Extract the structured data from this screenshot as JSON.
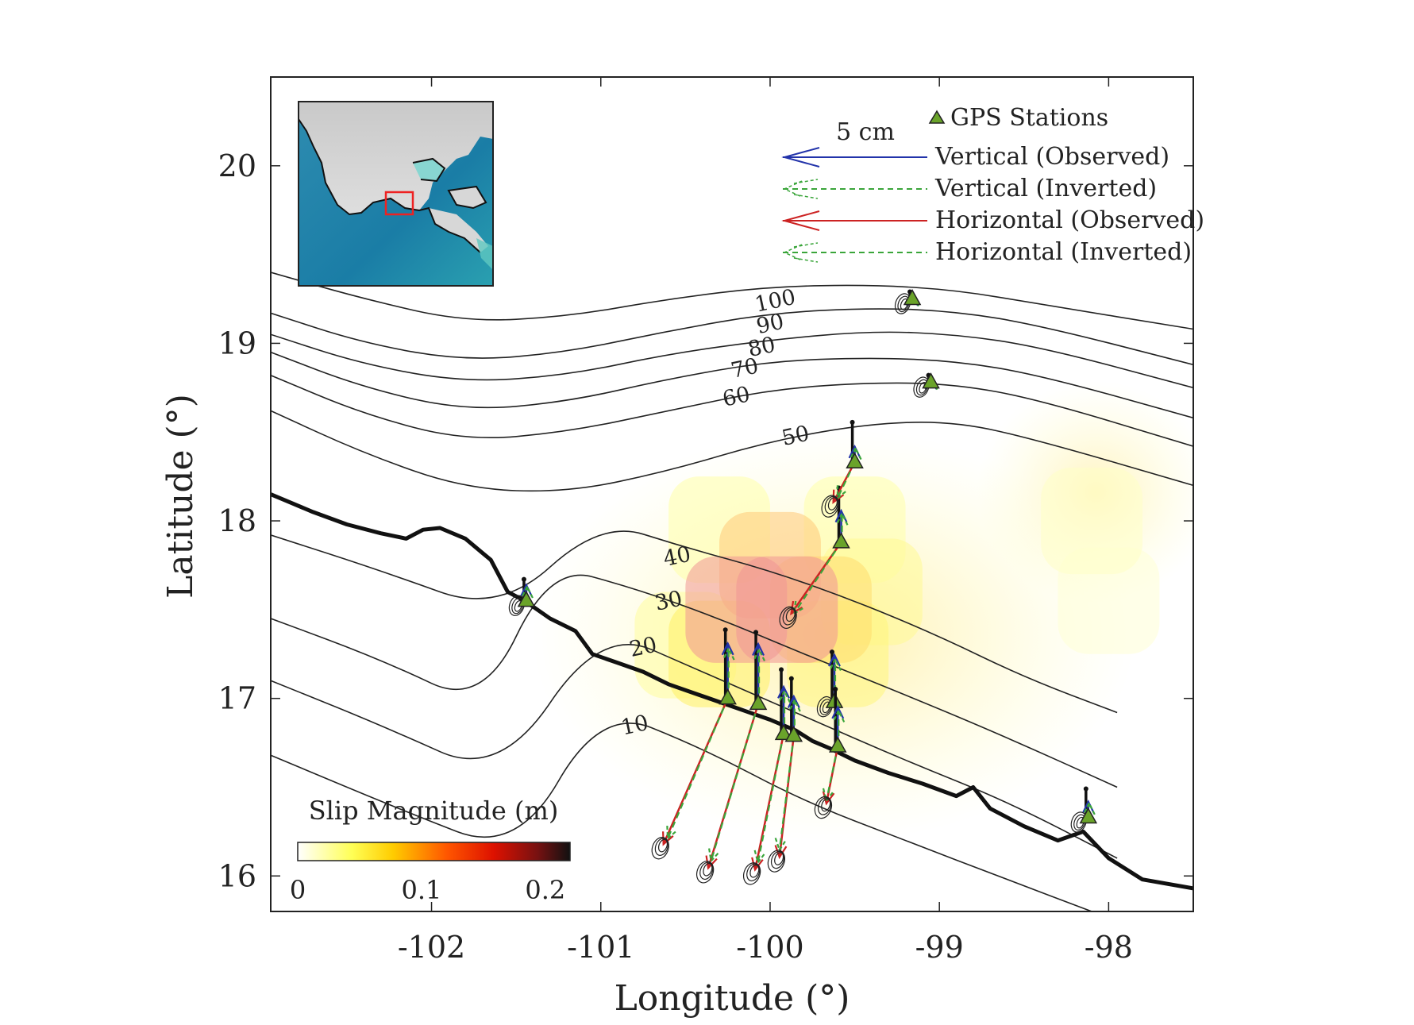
{
  "figure": {
    "xlabel": "Longitude (°)",
    "ylabel": "Latitude (°)",
    "xlim": [
      -102.95,
      -97.5
    ],
    "ylim": [
      15.8,
      20.5
    ]
  },
  "chart_data": {
    "type": "map",
    "x_ticks": [
      {
        "value": -102,
        "label": "-102"
      },
      {
        "value": -101,
        "label": "-101"
      },
      {
        "value": -100,
        "label": "-100"
      },
      {
        "value": -99,
        "label": "-99"
      },
      {
        "value": -98,
        "label": "-98"
      }
    ],
    "y_ticks": [
      {
        "value": 16,
        "label": "16"
      },
      {
        "value": 17,
        "label": "17"
      },
      {
        "value": 18,
        "label": "18"
      },
      {
        "value": 19,
        "label": "19"
      },
      {
        "value": 20,
        "label": "20"
      }
    ],
    "slab_contours": [
      {
        "depth": 10,
        "label": "10",
        "label_at": [
          -100.8,
          16.85
        ],
        "points": [
          [
            -102.95,
            16.68
          ],
          [
            -102.2,
            16.38
          ],
          [
            -101.5,
            16.12
          ],
          [
            -101,
            16.95
          ],
          [
            -100.4,
            16.72
          ],
          [
            -99.8,
            16.42
          ],
          [
            -99.2,
            16.2
          ],
          [
            -98.6,
            15.98
          ],
          [
            -98.1,
            15.8
          ]
        ]
      },
      {
        "depth": 20,
        "label": "20",
        "label_at": [
          -100.75,
          17.29
        ],
        "points": [
          [
            -102.95,
            17.1
          ],
          [
            -102.3,
            16.85
          ],
          [
            -101.6,
            16.55
          ],
          [
            -101.0,
            17.4
          ],
          [
            -100.4,
            17.15
          ],
          [
            -99.8,
            16.9
          ],
          [
            -99.2,
            16.65
          ],
          [
            -98.6,
            16.42
          ],
          [
            -97.95,
            16.1
          ]
        ]
      },
      {
        "depth": 30,
        "label": "30",
        "label_at": [
          -100.6,
          17.55
        ],
        "points": [
          [
            -102.95,
            17.45
          ],
          [
            -102.3,
            17.22
          ],
          [
            -101.7,
            16.95
          ],
          [
            -101.3,
            17.75
          ],
          [
            -100.8,
            17.62
          ],
          [
            -100.3,
            17.45
          ],
          [
            -99.8,
            17.25
          ],
          [
            -99.2,
            17.02
          ],
          [
            -98.6,
            16.78
          ],
          [
            -97.95,
            16.5
          ]
        ]
      },
      {
        "depth": 40,
        "label": "40",
        "label_at": [
          -100.55,
          17.8
        ],
        "points": [
          [
            -102.95,
            17.92
          ],
          [
            -102.3,
            17.72
          ],
          [
            -101.6,
            17.48
          ],
          [
            -101.0,
            18.0
          ],
          [
            -100.5,
            17.85
          ],
          [
            -100.0,
            17.72
          ],
          [
            -99.5,
            17.55
          ],
          [
            -99.0,
            17.35
          ],
          [
            -98.5,
            17.12
          ],
          [
            -97.95,
            16.92
          ]
        ]
      },
      {
        "depth": 50,
        "label": "50",
        "label_at": [
          -99.85,
          18.48
        ],
        "points": [
          [
            -102.95,
            18.62
          ],
          [
            -102.4,
            18.38
          ],
          [
            -101.8,
            18.18
          ],
          [
            -101.2,
            18.16
          ],
          [
            -100.6,
            18.28
          ],
          [
            -100.0,
            18.45
          ],
          [
            -99.4,
            18.55
          ],
          [
            -98.9,
            18.56
          ],
          [
            -98.4,
            18.45
          ],
          [
            -97.5,
            18.2
          ]
        ]
      },
      {
        "depth": 60,
        "label": "60",
        "label_at": [
          -100.2,
          18.7
        ],
        "points": [
          [
            -102.95,
            18.82
          ],
          [
            -102.4,
            18.6
          ],
          [
            -101.8,
            18.45
          ],
          [
            -101.2,
            18.5
          ],
          [
            -100.6,
            18.62
          ],
          [
            -100.0,
            18.74
          ],
          [
            -99.4,
            18.78
          ],
          [
            -98.9,
            18.77
          ],
          [
            -98.4,
            18.68
          ],
          [
            -97.5,
            18.42
          ]
        ]
      },
      {
        "depth": 70,
        "label": "70",
        "label_at": [
          -100.15,
          18.86
        ],
        "points": [
          [
            -102.95,
            18.95
          ],
          [
            -102.4,
            18.75
          ],
          [
            -101.8,
            18.62
          ],
          [
            -101.2,
            18.67
          ],
          [
            -100.6,
            18.8
          ],
          [
            -100.0,
            18.9
          ],
          [
            -99.4,
            18.92
          ],
          [
            -98.9,
            18.9
          ],
          [
            -98.4,
            18.82
          ],
          [
            -97.5,
            18.58
          ]
        ]
      },
      {
        "depth": 80,
        "label": "80",
        "label_at": [
          -100.05,
          18.98
        ],
        "points": [
          [
            -102.95,
            19.05
          ],
          [
            -102.4,
            18.88
          ],
          [
            -101.8,
            18.78
          ],
          [
            -101.2,
            18.82
          ],
          [
            -100.6,
            18.94
          ],
          [
            -100.0,
            19.02
          ],
          [
            -99.4,
            19.07
          ],
          [
            -98.9,
            19.05
          ],
          [
            -98.4,
            18.98
          ],
          [
            -97.5,
            18.75
          ]
        ]
      },
      {
        "depth": 90,
        "label": "90",
        "label_at": [
          -100.0,
          19.11
        ],
        "points": [
          [
            -102.95,
            19.17
          ],
          [
            -102.4,
            19.0
          ],
          [
            -101.8,
            18.9
          ],
          [
            -101.2,
            18.95
          ],
          [
            -100.6,
            19.07
          ],
          [
            -100.0,
            19.17
          ],
          [
            -99.4,
            19.2
          ],
          [
            -98.9,
            19.18
          ],
          [
            -98.4,
            19.1
          ],
          [
            -97.5,
            18.88
          ]
        ]
      },
      {
        "depth": 100,
        "label": "100",
        "label_at": [
          -99.97,
          19.24
        ],
        "points": [
          [
            -102.95,
            19.4
          ],
          [
            -102.4,
            19.25
          ],
          [
            -101.8,
            19.12
          ],
          [
            -101.2,
            19.15
          ],
          [
            -100.6,
            19.25
          ],
          [
            -100.0,
            19.32
          ],
          [
            -99.4,
            19.33
          ],
          [
            -98.9,
            19.3
          ],
          [
            -98.4,
            19.22
          ],
          [
            -97.5,
            19.08
          ]
        ]
      }
    ],
    "coastline": [
      [
        -102.95,
        18.15
      ],
      [
        -102.7,
        18.05
      ],
      [
        -102.5,
        17.98
      ],
      [
        -102.3,
        17.93
      ],
      [
        -102.15,
        17.9
      ],
      [
        -102.05,
        17.95
      ],
      [
        -101.95,
        17.96
      ],
      [
        -101.8,
        17.9
      ],
      [
        -101.7,
        17.82
      ],
      [
        -101.65,
        17.78
      ],
      [
        -101.55,
        17.6
      ],
      [
        -101.45,
        17.55
      ],
      [
        -101.3,
        17.45
      ],
      [
        -101.15,
        17.38
      ],
      [
        -101.05,
        17.25
      ],
      [
        -100.9,
        17.2
      ],
      [
        -100.75,
        17.15
      ],
      [
        -100.6,
        17.08
      ],
      [
        -100.45,
        17.03
      ],
      [
        -100.3,
        16.98
      ],
      [
        -100.15,
        16.93
      ],
      [
        -100.0,
        16.88
      ],
      [
        -99.85,
        16.82
      ],
      [
        -99.75,
        16.76
      ],
      [
        -99.65,
        16.72
      ],
      [
        -99.5,
        16.65
      ],
      [
        -99.3,
        16.58
      ],
      [
        -99.1,
        16.52
      ],
      [
        -98.9,
        16.45
      ],
      [
        -98.8,
        16.5
      ],
      [
        -98.7,
        16.38
      ],
      [
        -98.5,
        16.28
      ],
      [
        -98.3,
        16.2
      ],
      [
        -98.15,
        16.25
      ],
      [
        -98.0,
        16.1
      ],
      [
        -97.8,
        15.98
      ],
      [
        -97.5,
        15.93
      ]
    ],
    "slip_patches": [
      {
        "lon": -100.2,
        "lat": 17.5,
        "slip": 0.1
      },
      {
        "lon": -99.9,
        "lat": 17.5,
        "slip": 0.1
      },
      {
        "lon": -100.0,
        "lat": 17.75,
        "slip": 0.08
      },
      {
        "lon": -99.7,
        "lat": 17.5,
        "slip": 0.07
      },
      {
        "lon": -100.3,
        "lat": 17.25,
        "slip": 0.06
      },
      {
        "lon": -99.6,
        "lat": 17.25,
        "slip": 0.05
      },
      {
        "lon": -99.4,
        "lat": 17.6,
        "slip": 0.04
      },
      {
        "lon": -100.5,
        "lat": 17.3,
        "slip": 0.035
      },
      {
        "lon": -100.3,
        "lat": 17.95,
        "slip": 0.03
      },
      {
        "lon": -99.5,
        "lat": 17.95,
        "slip": 0.03
      },
      {
        "lon": -98.1,
        "lat": 18.0,
        "slip": 0.02
      },
      {
        "lon": -98.0,
        "lat": 17.55,
        "slip": 0.015
      }
    ],
    "stations": [
      {
        "lon": -101.44,
        "lat": 17.55,
        "obs_v": 0.15,
        "inv_v": 0.1,
        "obs_h": [
          0,
          0
        ],
        "inv_h": [
          0,
          0
        ]
      },
      {
        "lon": -100.25,
        "lat": 17.0,
        "obs_v": 0.48,
        "inv_v": 0.35,
        "obs_h": [
          -0.45,
          -1.02
        ],
        "inv_h": [
          -0.42,
          -0.98
        ]
      },
      {
        "lon": -100.07,
        "lat": 16.97,
        "obs_v": 0.5,
        "inv_v": 0.38,
        "obs_h": [
          -0.35,
          -1.15
        ],
        "inv_h": [
          -0.33,
          -1.1
        ]
      },
      {
        "lon": -99.92,
        "lat": 16.8,
        "obs_v": 0.45,
        "inv_v": 0.3,
        "obs_h": [
          -0.2,
          -0.95
        ],
        "inv_h": [
          -0.18,
          -0.9
        ]
      },
      {
        "lon": -99.86,
        "lat": 16.79,
        "obs_v": 0.4,
        "inv_v": 0.25,
        "obs_h": [
          -0.1,
          -0.85
        ],
        "inv_h": [
          -0.1,
          -0.8
        ]
      },
      {
        "lon": -99.62,
        "lat": 16.98,
        "obs_v": 0.35,
        "inv_v": 0.3,
        "obs_h": [
          0,
          0
        ],
        "inv_h": [
          0,
          0
        ]
      },
      {
        "lon": -99.6,
        "lat": 16.73,
        "obs_v": 0.4,
        "inv_v": 0.25,
        "obs_h": [
          -0.08,
          -0.4
        ],
        "inv_h": [
          -0.08,
          -0.38
        ]
      },
      {
        "lon": -99.58,
        "lat": 17.88,
        "obs_v": 0.38,
        "inv_v": 0.2,
        "obs_h": [
          -0.35,
          -0.5
        ],
        "inv_h": [
          -0.33,
          -0.5
        ]
      },
      {
        "lon": -99.5,
        "lat": 18.33,
        "obs_v": 0.28,
        "inv_v": 0.1,
        "obs_h": [
          -0.15,
          -0.28
        ],
        "inv_h": [
          -0.12,
          -0.25
        ]
      },
      {
        "lon": -99.16,
        "lat": 19.25,
        "obs_v": 0.05,
        "inv_v": 0.03,
        "obs_h": [
          0,
          0
        ],
        "inv_h": [
          0,
          0
        ]
      },
      {
        "lon": -99.05,
        "lat": 18.78,
        "obs_v": 0.05,
        "inv_v": 0.03,
        "obs_h": [
          0,
          0
        ],
        "inv_h": [
          0,
          0
        ]
      },
      {
        "lon": -98.12,
        "lat": 16.33,
        "obs_v": 0.2,
        "inv_v": 0.1,
        "obs_h": [
          0,
          0
        ],
        "inv_h": [
          0,
          0
        ]
      }
    ]
  },
  "legend": {
    "gps_stations": "GPS Stations",
    "scale_label": "5 cm",
    "vertical_observed": "Vertical (Observed)",
    "vertical_inverted": "Vertical (Inverted)",
    "horizontal_observed": "Horizontal (Observed)",
    "horizontal_inverted": "Horizontal (Inverted)"
  },
  "colorbar": {
    "title": "Slip Magnitude (m)",
    "tick_labels": [
      "0",
      "0.1",
      "0.2"
    ],
    "range": [
      0,
      0.22
    ]
  },
  "colors": {
    "observed_vertical": "#2233aa",
    "observed_horizontal": "#cc2222",
    "inverted": "#3aa53a",
    "station_marker": "#6aa32a",
    "coastline": "#111111",
    "inset_box": "#ee2222"
  }
}
